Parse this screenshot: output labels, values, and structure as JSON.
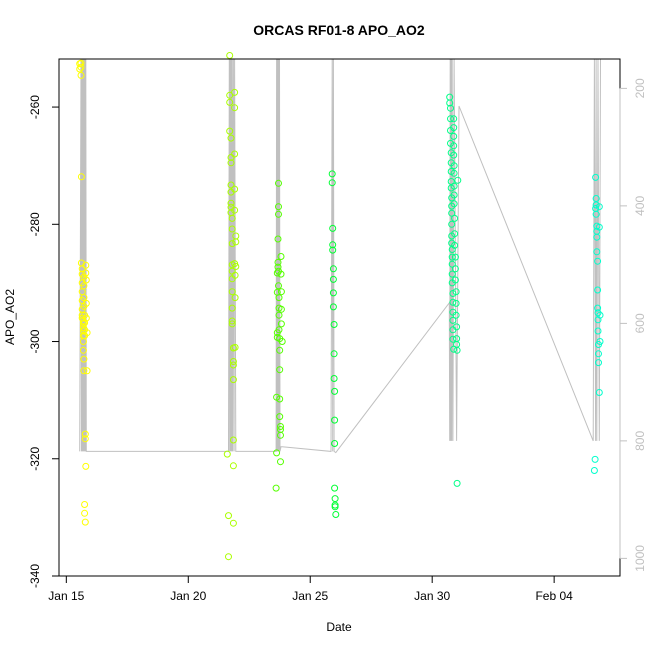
{
  "chart_data": {
    "type": "scatter",
    "title": "ORCAS RF01-8 APO_AO2",
    "xlabel": "Date",
    "ylabel": "APO_AO2",
    "x_ticks": [
      "Jan 15",
      "Jan 20",
      "Jan 25",
      "Jan 30",
      "Feb 04"
    ],
    "x_tick_values": [
      15,
      20,
      25,
      30,
      35
    ],
    "xlim": [
      14.7,
      37.7
    ],
    "y_ticks": [
      "-340",
      "-320",
      "-300",
      "-280",
      "-260"
    ],
    "y_tick_values": [
      -340,
      -320,
      -300,
      -280,
      -260
    ],
    "ylim": [
      -340,
      -251.8
    ],
    "right_axis": {
      "ticks": [
        "1000",
        "800",
        "600",
        "400",
        "200"
      ],
      "tick_values": [
        1000,
        800,
        600,
        400,
        200
      ],
      "reversed": true,
      "ylim": [
        1030,
        150
      ],
      "color": "#c0c0c0"
    },
    "grid": false,
    "series": [
      {
        "color": "#ffff00",
        "x": [
          15.55,
          15.55,
          15.6,
          15.6,
          15.6,
          15.62,
          15.62,
          15.65,
          15.65,
          15.65,
          15.65,
          15.65,
          15.65,
          15.65,
          15.65,
          15.7,
          15.7,
          15.7,
          15.7,
          15.7,
          15.7,
          15.7,
          15.72,
          15.72,
          15.72,
          15.72,
          15.72,
          15.72,
          15.75,
          15.75,
          15.75,
          15.75,
          15.75,
          15.75,
          15.78,
          15.78,
          15.78,
          15.8,
          15.8,
          15.8,
          15.82,
          15.82,
          15.82,
          15.85,
          15.85
        ],
        "y": [
          -252.6,
          -253.5,
          -254.6,
          -252.5,
          -253.2,
          -271.9,
          -286.6,
          -287.6,
          -288.5,
          -290.0,
          -291.5,
          -293.0,
          -294.5,
          -295.5,
          -296.0,
          -296.5,
          -297.0,
          -297.6,
          -298.2,
          -299.0,
          -300.0,
          -301.5,
          -303.0,
          -305.0,
          -289.0,
          -290.5,
          -292.5,
          -294.0,
          -295.5,
          -296.8,
          -298.0,
          -299.0,
          -327.8,
          -329.3,
          -330.8,
          -315.8,
          -316.6,
          -321.3,
          -287.0,
          -288.3,
          -289.5,
          -293.5,
          -296.0,
          -298.5,
          -305.0
        ]
      },
      {
        "color": "#aaff00",
        "x": [
          21.6,
          21.65,
          21.65,
          21.7,
          21.7,
          21.7,
          21.7,
          21.75,
          21.75,
          21.75,
          21.75,
          21.75,
          21.75,
          21.75,
          21.75,
          21.8,
          21.8,
          21.8,
          21.8,
          21.8,
          21.8,
          21.8,
          21.8,
          21.8,
          21.8,
          21.85,
          21.85,
          21.85,
          21.85,
          21.85,
          21.85,
          21.85,
          21.9,
          21.9,
          21.9,
          21.9,
          21.9,
          21.9,
          21.92,
          21.92,
          21.92,
          21.95,
          21.95,
          21.95
        ],
        "y": [
          -319.2,
          -329.7,
          -336.7,
          -251.2,
          -258.0,
          -259.2,
          -264.1,
          -265.3,
          -268.6,
          -269.5,
          -273.3,
          -274.5,
          -276.4,
          -277.1,
          -278.0,
          -279.0,
          -280.8,
          -283.3,
          -286.9,
          -288.0,
          -289.3,
          -291.5,
          -294.3,
          -296.5,
          -297.0,
          -301.1,
          -303.4,
          -304.0,
          -306.5,
          -316.8,
          -321.2,
          -331.0,
          -257.5,
          -260.1,
          -268.0,
          -274.0,
          -277.6,
          -286.7,
          -288.7,
          -292.5,
          -301.0,
          -283.0,
          -287.2,
          -282.0
        ]
      },
      {
        "color": "#55ff00",
        "x": [
          23.6,
          23.62,
          23.62,
          23.65,
          23.65,
          23.65,
          23.65,
          23.68,
          23.68,
          23.68,
          23.7,
          23.7,
          23.7,
          23.7,
          23.7,
          23.72,
          23.72,
          23.72,
          23.72,
          23.75,
          23.75,
          23.75,
          23.75,
          23.75,
          23.78,
          23.78,
          23.78,
          23.78,
          23.8,
          23.8,
          23.82,
          23.82,
          23.82,
          23.85
        ],
        "y": [
          -325.0,
          -319.0,
          -309.5,
          -298.5,
          -299.3,
          -291.6,
          -288.3,
          -287.3,
          -286.5,
          -282.5,
          -278.3,
          -277.0,
          -273.0,
          -288.0,
          -290.5,
          -292.5,
          -294.3,
          -295.5,
          -298.0,
          -299.5,
          -301.5,
          -304.8,
          -309.8,
          -312.8,
          -314.5,
          -315.0,
          -316.0,
          -320.5,
          -285.5,
          -288.5,
          -291.5,
          -294.5,
          -297.0,
          -300.0
        ]
      },
      {
        "color": "#00ff33",
        "x": [
          25.9,
          25.9,
          25.92,
          25.92,
          25.92,
          25.95,
          25.95,
          25.95,
          25.95,
          25.98,
          25.98,
          25.98,
          26.0,
          26.0,
          26.0,
          26.0,
          26.02,
          26.02,
          26.02,
          26.05
        ],
        "y": [
          -271.4,
          -272.9,
          -280.7,
          -283.5,
          -284.4,
          -287.6,
          -289.4,
          -291.7,
          -294.1,
          -297.1,
          -302.1,
          -306.3,
          -308.5,
          -313.4,
          -317.4,
          -325.0,
          -326.8,
          -327.9,
          -328.2,
          -329.5
        ]
      },
      {
        "color": "#00ff88",
        "x": [
          30.72,
          30.72,
          30.75,
          30.75,
          30.75,
          30.75,
          30.78,
          30.78,
          30.78,
          30.78,
          30.78,
          30.8,
          30.8,
          30.8,
          30.8,
          30.8,
          30.8,
          30.82,
          30.82,
          30.82,
          30.82,
          30.82,
          30.85,
          30.85,
          30.85,
          30.85,
          30.85,
          30.85,
          30.88,
          30.88,
          30.88,
          30.88,
          30.88,
          30.88,
          30.9,
          30.9,
          30.9,
          30.9,
          30.9,
          30.92,
          30.92,
          30.92,
          30.95,
          30.95,
          30.95,
          30.98,
          30.98,
          30.98,
          31.0,
          31.0,
          31.0,
          31.02,
          31.02,
          31.05
        ],
        "y": [
          -258.3,
          -259.3,
          -260.2,
          -262.0,
          -264.0,
          -266.2,
          -267.8,
          -269.5,
          -271.0,
          -272.7,
          -273.8,
          -275.5,
          -276.9,
          -278.1,
          -280.0,
          -282.0,
          -283.2,
          -284.3,
          -285.6,
          -286.8,
          -288.5,
          -290.0,
          -291.8,
          -293.3,
          -295.0,
          -296.4,
          -298.0,
          -299.6,
          -301.3,
          -262.0,
          -263.5,
          -265.0,
          -266.6,
          -268.2,
          -270.0,
          -271.3,
          -273.5,
          -275.0,
          -276.5,
          -279.0,
          -281.6,
          -283.6,
          -285.6,
          -287.6,
          -289.5,
          -291.5,
          -293.5,
          -295.5,
          -297.5,
          -299.5,
          -300.5,
          -301.5,
          -324.2,
          -272.5
        ]
      },
      {
        "color": "#00ffcc",
        "x": [
          36.65,
          36.68,
          36.7,
          36.7,
          36.72,
          36.72,
          36.72,
          36.75,
          36.75,
          36.75,
          36.75,
          36.78,
          36.78,
          36.78,
          36.8,
          36.8,
          36.8,
          36.82,
          36.82,
          36.82,
          36.85,
          36.85,
          36.85,
          36.88,
          36.88
        ],
        "y": [
          -322.0,
          -320.1,
          -272.0,
          -277.3,
          -275.6,
          -276.7,
          -278.3,
          -280.3,
          -281.2,
          -282.2,
          -284.7,
          -286.3,
          -291.2,
          -294.3,
          -295.1,
          -296.3,
          -298.2,
          -300.5,
          -302.1,
          -303.6,
          -308.7,
          -280.5,
          -277.0,
          -295.5,
          -300.0
        ]
      }
    ],
    "altitude_line": {
      "color": "#c0c0c0",
      "x": [
        15.55,
        15.6,
        15.62,
        15.64,
        15.66,
        15.68,
        15.7,
        15.72,
        15.74,
        15.76,
        15.78,
        15.8,
        15.82,
        15.85,
        21.65,
        21.68,
        21.7,
        21.72,
        21.74,
        21.76,
        21.78,
        21.8,
        21.82,
        21.85,
        21.88,
        21.9,
        21.95,
        23.6,
        23.62,
        23.64,
        23.66,
        23.68,
        23.7,
        23.72,
        23.74,
        23.76,
        23.8,
        23.85,
        25.85,
        25.9,
        25.92,
        25.95,
        25.98,
        26.05,
        30.7,
        30.72,
        30.74,
        30.76,
        30.78,
        30.8,
        30.82,
        30.85,
        30.9,
        31.0,
        31.1,
        36.6,
        36.65,
        36.7,
        36.72,
        36.75,
        36.8,
        36.85,
        36.9
      ],
      "y": [
        818,
        150,
        818,
        150,
        818,
        150,
        818,
        150,
        818,
        150,
        818,
        150,
        818,
        818,
        818,
        150,
        818,
        150,
        818,
        150,
        818,
        150,
        818,
        150,
        818,
        150,
        818,
        818,
        150,
        818,
        150,
        818,
        150,
        818,
        150,
        818,
        810,
        810,
        818,
        150,
        818,
        150,
        818,
        820,
        565,
        800,
        150,
        800,
        150,
        800,
        150,
        800,
        150,
        800,
        230,
        800,
        150,
        800,
        150,
        800,
        150,
        800,
        150
      ]
    }
  }
}
